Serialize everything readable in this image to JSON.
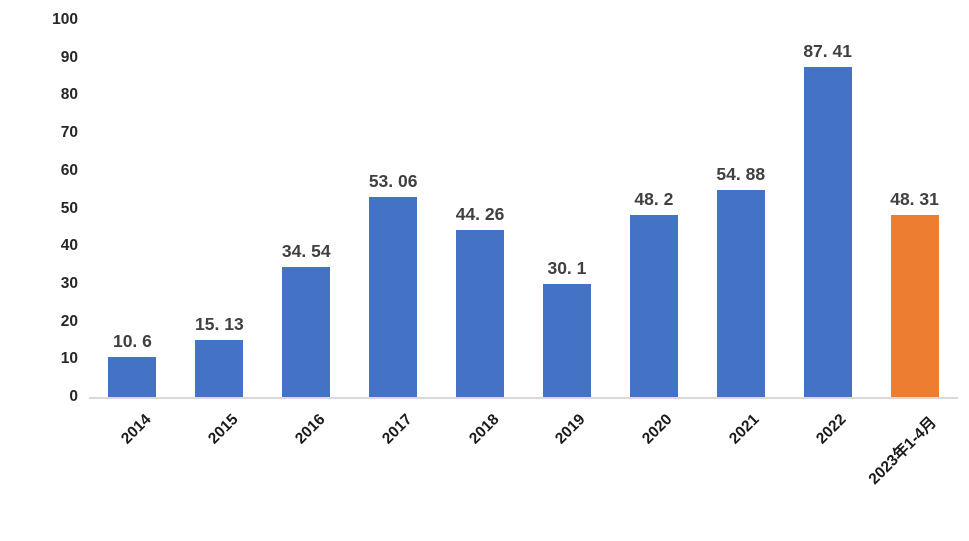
{
  "colors": {
    "bar_blue": "#4472C4",
    "bar_orange": "#ED7D31",
    "data_label": "#404040",
    "axis_tick": "#262626",
    "axis_line": "#D9D9D9",
    "background": "#FFFFFF"
  },
  "chart_data": {
    "type": "bar",
    "categories": [
      "2014",
      "2015",
      "2016",
      "2017",
      "2018",
      "2019",
      "2020",
      "2021",
      "2022",
      "2023年1-4月"
    ],
    "values": [
      10.6,
      15.13,
      34.54,
      53.06,
      44.26,
      30.1,
      48.2,
      54.88,
      87.41,
      48.31
    ],
    "value_labels": [
      "10. 6",
      "15. 13",
      "34. 54",
      "53. 06",
      "44. 26",
      "30. 1",
      "48. 2",
      "54. 88",
      "87. 41",
      "48. 31"
    ],
    "bar_colors": [
      "#4472C4",
      "#4472C4",
      "#4472C4",
      "#4472C4",
      "#4472C4",
      "#4472C4",
      "#4472C4",
      "#4472C4",
      "#4472C4",
      "#ED7D31"
    ],
    "ylim": [
      0,
      100
    ],
    "y_ticks": [
      "0",
      "10",
      "20",
      "30",
      "40",
      "50",
      "60",
      "70",
      "80",
      "90",
      "100"
    ],
    "grid": false,
    "legend": false,
    "data_labels_shown": true,
    "x_label_rotation_deg": -45
  }
}
